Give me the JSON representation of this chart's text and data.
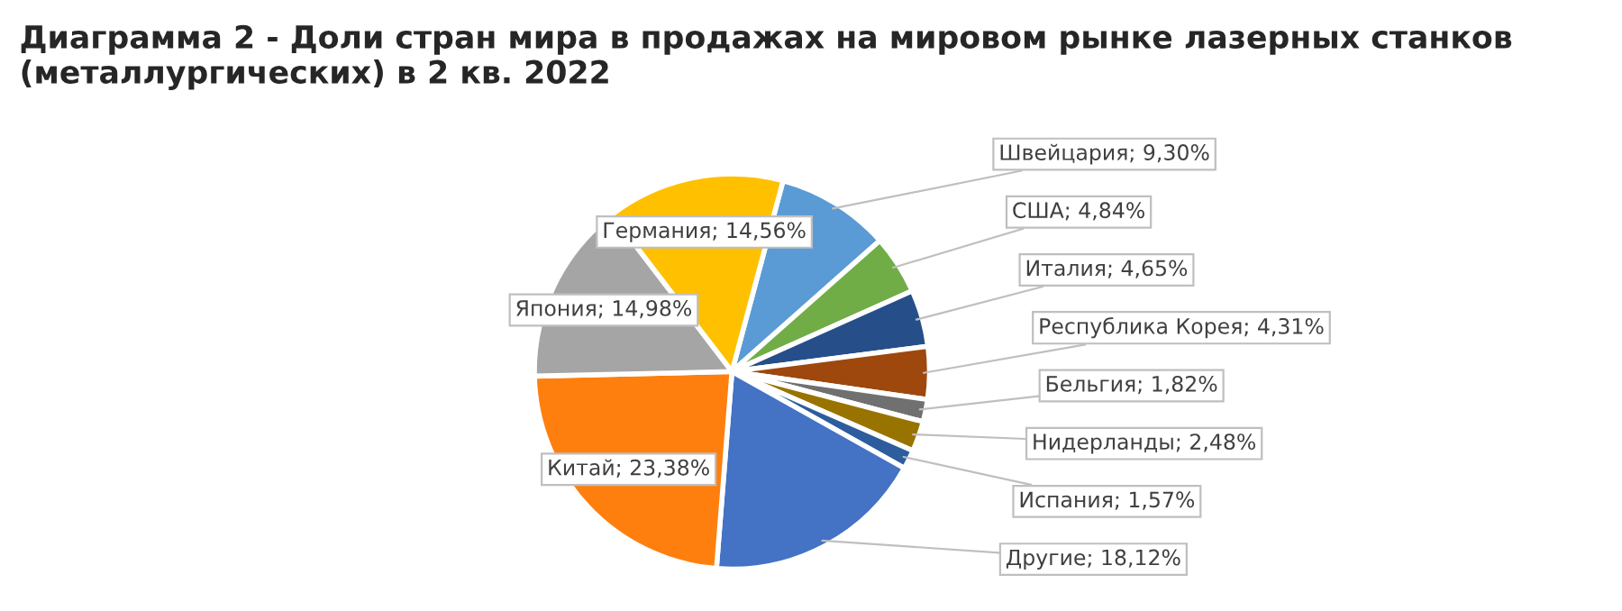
{
  "chart_data": {
    "type": "pie",
    "title": "Диаграмма 2 - Доли стран мира в продажах на мировом рынке лазерных станков (металлургических) в 2 кв. 2022",
    "categories": [
      "Швейцария",
      "США",
      "Италия",
      "Республика Корея",
      "Бельгия",
      "Нидерланды",
      "Испания",
      "Другие",
      "Китай",
      "Япония",
      "Германия"
    ],
    "values": [
      9.3,
      4.84,
      4.65,
      4.31,
      1.82,
      2.48,
      1.57,
      18.12,
      23.38,
      14.98,
      14.56
    ],
    "value_labels": [
      "9,30%",
      "4,84%",
      "4,65%",
      "4,31%",
      "1,82%",
      "2,48%",
      "1,57%",
      "18,12%",
      "23,38%",
      "14,98%",
      "14,56%"
    ],
    "colors": [
      "#5b9bd5",
      "#70ad47",
      "#264f8a",
      "#9e480e",
      "#707070",
      "#997300",
      "#2e5d9e",
      "#4472c4",
      "#ff7f0e",
      "#a5a5a5",
      "#ffc000"
    ],
    "legend": false
  }
}
